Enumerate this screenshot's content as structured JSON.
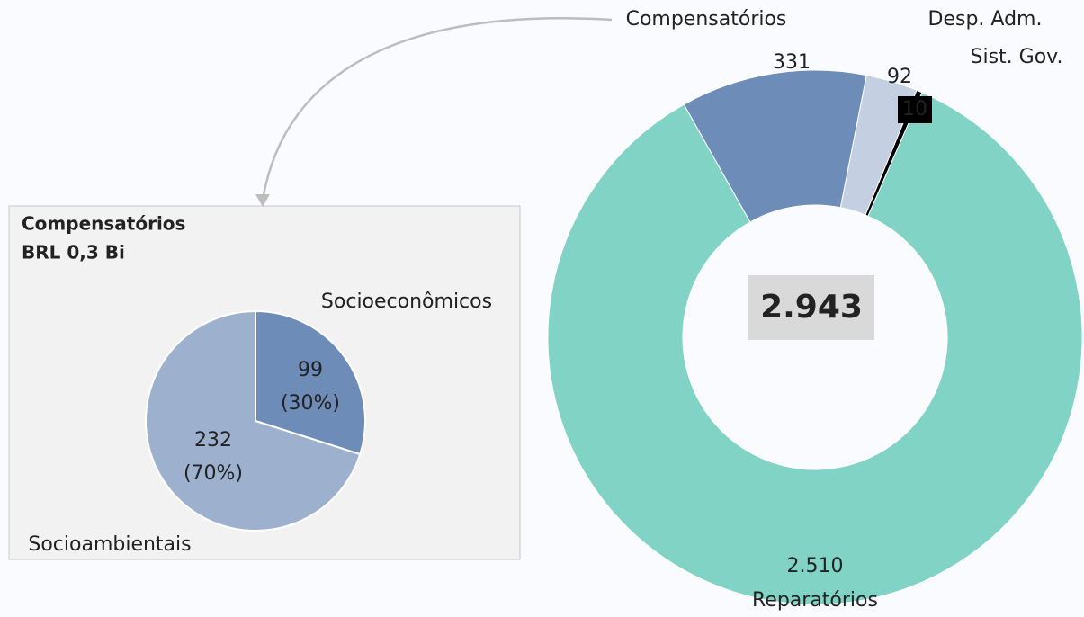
{
  "chart_data": [
    {
      "type": "donut",
      "categories": [
        "Reparatórios",
        "Compensatórios",
        "Desp. Adm.",
        "Sist. Gov."
      ],
      "values": [
        2510,
        331,
        92,
        10
      ],
      "value_labels": [
        "2.510",
        "331",
        "92",
        "10"
      ],
      "colors": [
        "#81d3c6",
        "#6e8cb8",
        "#c5cfe2",
        "#000000"
      ],
      "center_label": "2.943"
    },
    {
      "type": "pie",
      "title": "Compensatórios",
      "subtitle": "BRL 0,3 Bi",
      "categories": [
        "Socioeconômicos",
        "Socioambientais"
      ],
      "values": [
        99,
        232
      ],
      "percent_labels": [
        "(30%)",
        "(70%)"
      ],
      "colors": [
        "#6e8cb8",
        "#9db0ce"
      ]
    }
  ]
}
